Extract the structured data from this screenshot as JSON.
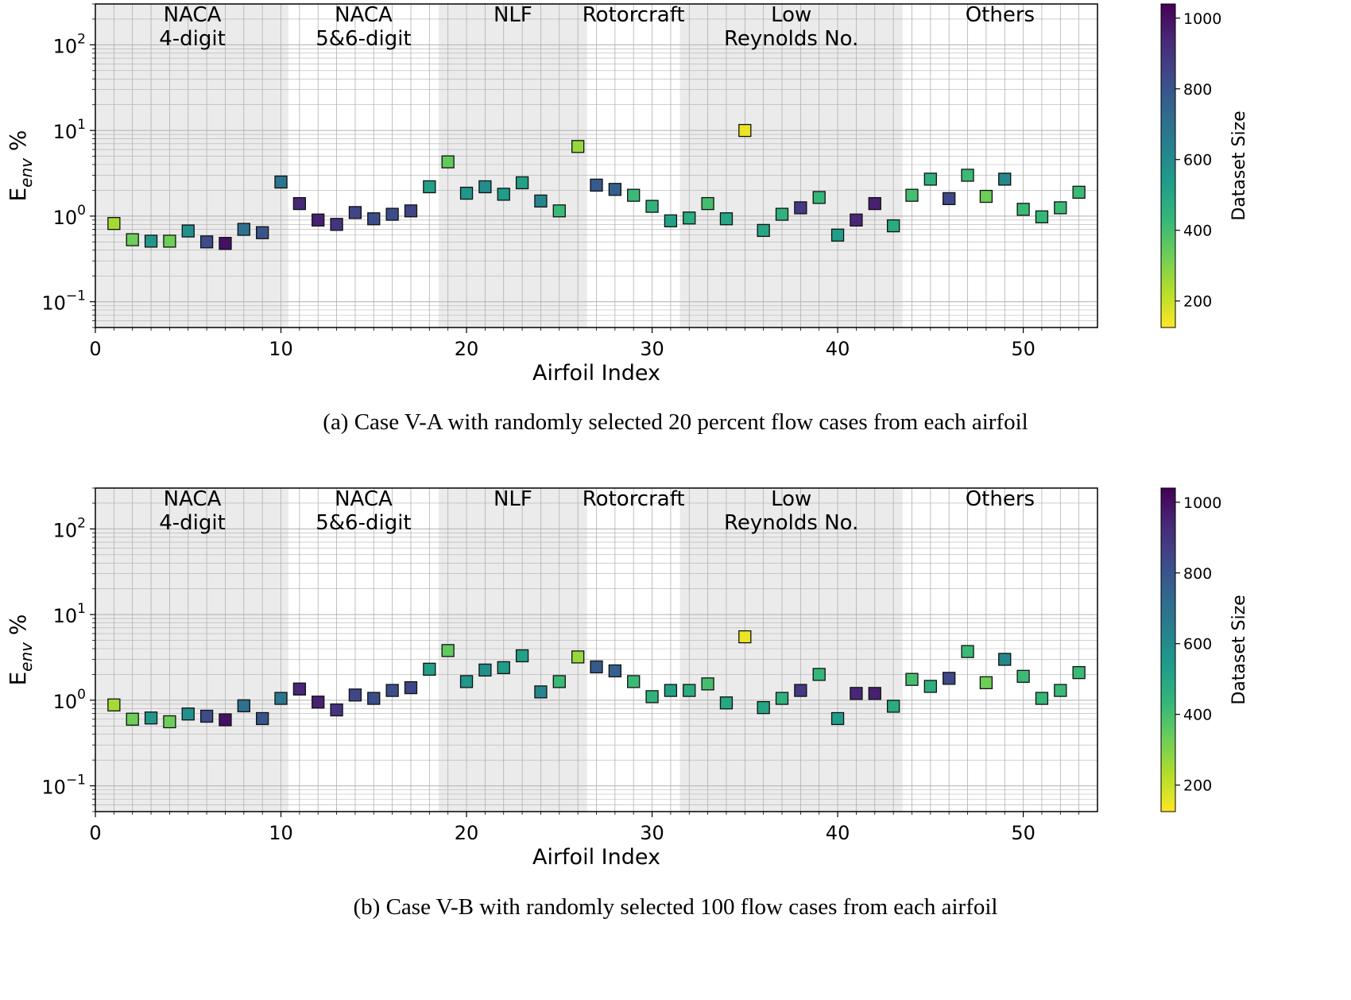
{
  "colorbar_label": "Dataset Size",
  "colorbar_ticks": [
    200,
    400,
    600,
    800,
    1000
  ],
  "colorbar_range": [
    125,
    1040
  ],
  "colormap": [
    "#fde725",
    "#b5de2b",
    "#6ece58",
    "#35b779",
    "#1f9e89",
    "#26828e",
    "#31688e",
    "#3e4989",
    "#482878",
    "#440154"
  ],
  "grid_color": "#b0b0b0",
  "band_color": "#ebebeb",
  "chart_data": [
    {
      "type": "scatter",
      "caption": "(a) Case V-A with randomly selected 20 percent flow cases from each airfoil",
      "xlabel": "Airfoil Index",
      "ylabel_main": "E",
      "ylabel_sub": "env",
      "ylabel_unit": " %",
      "x_ticks": [
        "0",
        "10",
        "20",
        "30",
        "40",
        "50"
      ],
      "y_ticks": [
        {
          "base": "10",
          "exp": "−1",
          "value": 0.1
        },
        {
          "base": "10",
          "exp": "0",
          "value": 1
        },
        {
          "base": "10",
          "exp": "1",
          "value": 10
        },
        {
          "base": "10",
          "exp": "2",
          "value": 100
        }
      ],
      "y_scale": "log",
      "xlim": [
        0,
        54
      ],
      "ylim": [
        0.05,
        300
      ],
      "grid": true,
      "bands": [
        {
          "lines": [
            "NACA",
            "4-digit"
          ],
          "x0": 0.05,
          "x1": 10.4,
          "shaded": true
        },
        {
          "lines": [
            "NACA",
            "5&6-digit"
          ],
          "x0": 10.4,
          "x1": 18.5,
          "shaded": false
        },
        {
          "lines": [
            "NLF"
          ],
          "x0": 18.5,
          "x1": 26.5,
          "shaded": true
        },
        {
          "lines": [
            "Rotorcraft"
          ],
          "x0": 26.5,
          "x1": 31.5,
          "shaded": false
        },
        {
          "lines": [
            "Low",
            "Reynolds No."
          ],
          "x0": 31.5,
          "x1": 43.5,
          "shaded": true
        },
        {
          "lines": [
            "Others"
          ],
          "x0": 43.5,
          "x1": 54,
          "shaded": false
        }
      ],
      "points": [
        {
          "x": 1,
          "y": 0.82,
          "size": 250
        },
        {
          "x": 2,
          "y": 0.53,
          "size": 330
        },
        {
          "x": 3,
          "y": 0.51,
          "size": 560
        },
        {
          "x": 4,
          "y": 0.51,
          "size": 330
        },
        {
          "x": 5,
          "y": 0.67,
          "size": 580
        },
        {
          "x": 6,
          "y": 0.5,
          "size": 830
        },
        {
          "x": 7,
          "y": 0.48,
          "size": 1000
        },
        {
          "x": 8,
          "y": 0.7,
          "size": 700
        },
        {
          "x": 9,
          "y": 0.64,
          "size": 800
        },
        {
          "x": 10,
          "y": 2.5,
          "size": 680
        },
        {
          "x": 11,
          "y": 1.4,
          "size": 940
        },
        {
          "x": 12,
          "y": 0.9,
          "size": 960
        },
        {
          "x": 13,
          "y": 0.8,
          "size": 900
        },
        {
          "x": 14,
          "y": 1.1,
          "size": 850
        },
        {
          "x": 15,
          "y": 0.93,
          "size": 820
        },
        {
          "x": 16,
          "y": 1.05,
          "size": 820
        },
        {
          "x": 17,
          "y": 1.15,
          "size": 850
        },
        {
          "x": 18,
          "y": 2.2,
          "size": 520
        },
        {
          "x": 19,
          "y": 4.3,
          "size": 350
        },
        {
          "x": 20,
          "y": 1.85,
          "size": 560
        },
        {
          "x": 21,
          "y": 2.2,
          "size": 590
        },
        {
          "x": 22,
          "y": 1.8,
          "size": 540
        },
        {
          "x": 23,
          "y": 2.45,
          "size": 520
        },
        {
          "x": 24,
          "y": 1.5,
          "size": 620
        },
        {
          "x": 25,
          "y": 1.15,
          "size": 420
        },
        {
          "x": 26,
          "y": 6.5,
          "size": 270
        },
        {
          "x": 27,
          "y": 2.3,
          "size": 780
        },
        {
          "x": 28,
          "y": 2.05,
          "size": 760
        },
        {
          "x": 29,
          "y": 1.75,
          "size": 420
        },
        {
          "x": 30,
          "y": 1.3,
          "size": 450
        },
        {
          "x": 31,
          "y": 0.88,
          "size": 520
        },
        {
          "x": 32,
          "y": 0.95,
          "size": 470
        },
        {
          "x": 33,
          "y": 1.4,
          "size": 400
        },
        {
          "x": 34,
          "y": 0.93,
          "size": 500
        },
        {
          "x": 35,
          "y": 10.0,
          "size": 150
        },
        {
          "x": 36,
          "y": 0.68,
          "size": 500
        },
        {
          "x": 37,
          "y": 1.05,
          "size": 450
        },
        {
          "x": 38,
          "y": 1.25,
          "size": 880
        },
        {
          "x": 39,
          "y": 1.65,
          "size": 430
        },
        {
          "x": 40,
          "y": 0.6,
          "size": 530
        },
        {
          "x": 41,
          "y": 0.9,
          "size": 940
        },
        {
          "x": 42,
          "y": 1.4,
          "size": 960
        },
        {
          "x": 43,
          "y": 0.77,
          "size": 480
        },
        {
          "x": 44,
          "y": 1.75,
          "size": 400
        },
        {
          "x": 45,
          "y": 2.7,
          "size": 460
        },
        {
          "x": 46,
          "y": 1.6,
          "size": 840
        },
        {
          "x": 47,
          "y": 3.0,
          "size": 420
        },
        {
          "x": 48,
          "y": 1.7,
          "size": 330
        },
        {
          "x": 49,
          "y": 2.7,
          "size": 620
        },
        {
          "x": 50,
          "y": 1.2,
          "size": 420
        },
        {
          "x": 51,
          "y": 0.98,
          "size": 430
        },
        {
          "x": 52,
          "y": 1.25,
          "size": 420
        },
        {
          "x": 53,
          "y": 1.9,
          "size": 420
        }
      ]
    },
    {
      "type": "scatter",
      "caption": "(b) Case V-B with randomly selected 100 flow cases from each airfoil",
      "xlabel": "Airfoil Index",
      "ylabel_main": "E",
      "ylabel_sub": "env",
      "ylabel_unit": " %",
      "x_ticks": [
        "0",
        "10",
        "20",
        "30",
        "40",
        "50"
      ],
      "y_ticks": [
        {
          "base": "10",
          "exp": "−1",
          "value": 0.1
        },
        {
          "base": "10",
          "exp": "0",
          "value": 1
        },
        {
          "base": "10",
          "exp": "1",
          "value": 10
        },
        {
          "base": "10",
          "exp": "2",
          "value": 100
        }
      ],
      "y_scale": "log",
      "xlim": [
        0,
        54
      ],
      "ylim": [
        0.05,
        300
      ],
      "grid": true,
      "bands": [
        {
          "lines": [
            "NACA",
            "4-digit"
          ],
          "x0": 0.05,
          "x1": 10.4,
          "shaded": true
        },
        {
          "lines": [
            "NACA",
            "5&6-digit"
          ],
          "x0": 10.4,
          "x1": 18.5,
          "shaded": false
        },
        {
          "lines": [
            "NLF"
          ],
          "x0": 18.5,
          "x1": 26.5,
          "shaded": true
        },
        {
          "lines": [
            "Rotorcraft"
          ],
          "x0": 26.5,
          "x1": 31.5,
          "shaded": false
        },
        {
          "lines": [
            "Low",
            "Reynolds No."
          ],
          "x0": 31.5,
          "x1": 43.5,
          "shaded": true
        },
        {
          "lines": [
            "Others"
          ],
          "x0": 43.5,
          "x1": 54,
          "shaded": false
        }
      ],
      "points": [
        {
          "x": 1,
          "y": 0.88,
          "size": 250
        },
        {
          "x": 2,
          "y": 0.6,
          "size": 330
        },
        {
          "x": 3,
          "y": 0.62,
          "size": 560
        },
        {
          "x": 4,
          "y": 0.56,
          "size": 330
        },
        {
          "x": 5,
          "y": 0.69,
          "size": 580
        },
        {
          "x": 6,
          "y": 0.65,
          "size": 830
        },
        {
          "x": 7,
          "y": 0.59,
          "size": 1000
        },
        {
          "x": 8,
          "y": 0.86,
          "size": 700
        },
        {
          "x": 9,
          "y": 0.61,
          "size": 800
        },
        {
          "x": 10,
          "y": 1.05,
          "size": 680
        },
        {
          "x": 11,
          "y": 1.35,
          "size": 940
        },
        {
          "x": 12,
          "y": 0.95,
          "size": 960
        },
        {
          "x": 13,
          "y": 0.77,
          "size": 900
        },
        {
          "x": 14,
          "y": 1.15,
          "size": 850
        },
        {
          "x": 15,
          "y": 1.05,
          "size": 820
        },
        {
          "x": 16,
          "y": 1.3,
          "size": 820
        },
        {
          "x": 17,
          "y": 1.4,
          "size": 850
        },
        {
          "x": 18,
          "y": 2.3,
          "size": 520
        },
        {
          "x": 19,
          "y": 3.8,
          "size": 350
        },
        {
          "x": 20,
          "y": 1.65,
          "size": 560
        },
        {
          "x": 21,
          "y": 2.25,
          "size": 590
        },
        {
          "x": 22,
          "y": 2.4,
          "size": 540
        },
        {
          "x": 23,
          "y": 3.3,
          "size": 520
        },
        {
          "x": 24,
          "y": 1.25,
          "size": 620
        },
        {
          "x": 25,
          "y": 1.65,
          "size": 420
        },
        {
          "x": 26,
          "y": 3.2,
          "size": 270
        },
        {
          "x": 27,
          "y": 2.45,
          "size": 780
        },
        {
          "x": 28,
          "y": 2.2,
          "size": 760
        },
        {
          "x": 29,
          "y": 1.65,
          "size": 420
        },
        {
          "x": 30,
          "y": 1.1,
          "size": 450
        },
        {
          "x": 31,
          "y": 1.3,
          "size": 520
        },
        {
          "x": 32,
          "y": 1.3,
          "size": 470
        },
        {
          "x": 33,
          "y": 1.55,
          "size": 400
        },
        {
          "x": 34,
          "y": 0.93,
          "size": 500
        },
        {
          "x": 35,
          "y": 5.5,
          "size": 150
        },
        {
          "x": 36,
          "y": 0.82,
          "size": 500
        },
        {
          "x": 37,
          "y": 1.05,
          "size": 450
        },
        {
          "x": 38,
          "y": 1.3,
          "size": 880
        },
        {
          "x": 39,
          "y": 2.0,
          "size": 430
        },
        {
          "x": 40,
          "y": 0.61,
          "size": 530
        },
        {
          "x": 41,
          "y": 1.2,
          "size": 940
        },
        {
          "x": 42,
          "y": 1.2,
          "size": 960
        },
        {
          "x": 43,
          "y": 0.85,
          "size": 480
        },
        {
          "x": 44,
          "y": 1.75,
          "size": 400
        },
        {
          "x": 45,
          "y": 1.45,
          "size": 460
        },
        {
          "x": 46,
          "y": 1.8,
          "size": 840
        },
        {
          "x": 47,
          "y": 3.7,
          "size": 420
        },
        {
          "x": 48,
          "y": 1.6,
          "size": 330
        },
        {
          "x": 49,
          "y": 3.0,
          "size": 620
        },
        {
          "x": 50,
          "y": 1.9,
          "size": 420
        },
        {
          "x": 51,
          "y": 1.05,
          "size": 430
        },
        {
          "x": 52,
          "y": 1.3,
          "size": 420
        },
        {
          "x": 53,
          "y": 2.1,
          "size": 420
        }
      ]
    }
  ]
}
